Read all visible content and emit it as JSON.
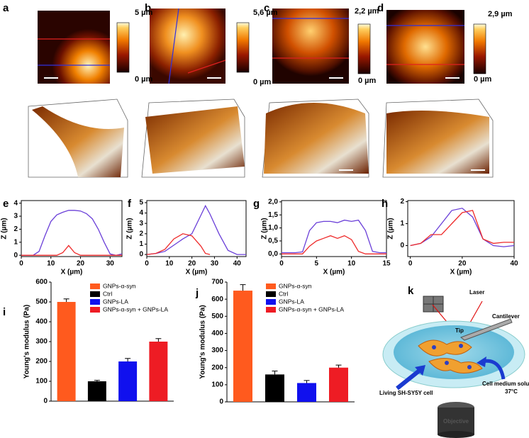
{
  "panel_labels": [
    "a",
    "b",
    "c",
    "d",
    "e",
    "f",
    "g",
    "h",
    "i",
    "j",
    "k"
  ],
  "colorbars": [
    {
      "max": "5 µm",
      "min": "0 µm"
    },
    {
      "max": "5,6 µm",
      "min": "0 µm"
    },
    {
      "max": "2,2 µm",
      "min": "0 µm"
    },
    {
      "max": "2,9 µm",
      "min": "0 µm"
    }
  ],
  "schematic": {
    "laser": "Laser",
    "cantilever": "Cantilever",
    "tip": "Tip",
    "cell": "Living SH-SY5Y cell",
    "medium": "Cell medium solution",
    "temperature": "37°C",
    "objective": "Objective"
  },
  "chart_data": [
    {
      "type": "line",
      "x_label": "X (µm)",
      "y_label": "Z (µm)",
      "xlim": [
        0,
        34
      ],
      "ylim": [
        -0.1,
        4.2
      ],
      "xticks": [
        0,
        10,
        20,
        30
      ],
      "yticks": [
        0,
        1,
        2,
        3,
        4
      ],
      "x": [
        0,
        2,
        4,
        6,
        8,
        10,
        12,
        14,
        16,
        18,
        20,
        22,
        24,
        26,
        28,
        30,
        32,
        34
      ],
      "series": [
        {
          "color": "#6a3fd8",
          "values": [
            0,
            0,
            0,
            0.3,
            1.5,
            2.6,
            3.1,
            3.3,
            3.45,
            3.45,
            3.4,
            3.2,
            2.8,
            2.0,
            1.0,
            0.1,
            0,
            0.1
          ]
        },
        {
          "color": "#ee2a2a",
          "values": [
            0,
            0,
            0,
            0,
            0,
            0,
            0,
            0.2,
            0.75,
            0.2,
            0,
            0,
            0,
            0,
            0,
            0,
            0,
            0
          ]
        }
      ]
    },
    {
      "type": "line",
      "x_label": "X (µm)",
      "y_label": "Z (µm)",
      "xlim": [
        0,
        44
      ],
      "ylim": [
        -0.2,
        5.2
      ],
      "xticks": [
        0,
        10,
        20,
        30,
        40
      ],
      "yticks": [
        0,
        1,
        2,
        3,
        4,
        5
      ],
      "x": [
        0,
        4,
        8,
        12,
        16,
        20,
        24,
        26,
        28,
        32,
        36,
        40,
        44
      ],
      "series": [
        {
          "color": "#6a3fd8",
          "values": [
            0,
            0.1,
            0.3,
            0.9,
            1.5,
            2.0,
            3.8,
            4.7,
            3.9,
            2.0,
            0.4,
            0,
            0
          ]
        },
        {
          "color": "#ee2a2a",
          "values": [
            0,
            0.1,
            0.5,
            1.5,
            2.0,
            1.8,
            0.8,
            0.1,
            0,
            null,
            null,
            null,
            null
          ]
        }
      ]
    },
    {
      "type": "line",
      "x_label": "X (µm)",
      "y_label": "Z (µm)",
      "xlim": [
        0,
        15
      ],
      "ylim": [
        -0.1,
        2.05
      ],
      "xticks": [
        0,
        5,
        10,
        15
      ],
      "yticks": [
        {
          "value": 0,
          "label": "0,0"
        },
        {
          "value": 0.5,
          "label": "0,5"
        },
        {
          "value": 1,
          "label": "1,0"
        },
        {
          "value": 1.5,
          "label": "1,5"
        },
        {
          "value": 2,
          "label": "2,0"
        }
      ],
      "x": [
        0,
        1,
        2,
        3,
        4,
        5,
        6,
        7,
        8,
        9,
        10,
        11,
        12,
        13,
        14,
        15
      ],
      "series": [
        {
          "color": "#6a3fd8",
          "values": [
            0.05,
            0.05,
            0.05,
            0.08,
            0.9,
            1.2,
            1.25,
            1.25,
            1.2,
            1.3,
            1.25,
            1.3,
            0.9,
            0.1,
            0.05,
            0.05
          ]
        },
        {
          "color": "#ee2a2a",
          "values": [
            0,
            0,
            0,
            0,
            0.3,
            0.5,
            0.6,
            0.7,
            0.6,
            0.7,
            0.55,
            0.1,
            0,
            0,
            0,
            0
          ]
        }
      ]
    },
    {
      "type": "line",
      "x_label": "X (µm)",
      "y_label": "Z (µm)",
      "xlim": [
        -1,
        40
      ],
      "ylim": [
        -0.5,
        2.05
      ],
      "xticks": [
        0,
        20,
        40
      ],
      "yticks": [
        0,
        1,
        2
      ],
      "x": [
        0,
        4,
        8,
        12,
        16,
        20,
        24,
        28,
        32,
        36,
        40
      ],
      "series": [
        {
          "color": "#6a3fd8",
          "values": [
            0,
            0.1,
            0.4,
            1.0,
            1.6,
            1.7,
            1.3,
            0.3,
            0,
            -0.05,
            0
          ]
        },
        {
          "color": "#ee2a2a",
          "values": [
            0,
            0.1,
            0.5,
            0.5,
            1.0,
            1.5,
            1.6,
            0.3,
            0.1,
            0.15,
            0.15
          ]
        }
      ]
    },
    {
      "type": "bar",
      "y_label": "Young's modulus (Pa)",
      "ylim": [
        0,
        600
      ],
      "yticks": [
        0,
        100,
        200,
        300,
        400,
        500,
        600
      ],
      "legend": "upper right",
      "categories": [
        "GNPs-α-syn",
        "Ctrl",
        "GNPs-LA",
        "GNPs-α-syn + GNPs-LA"
      ],
      "colors": [
        "#ff5a1e",
        "#000000",
        "#1010ee",
        "#ee1c24"
      ],
      "values": [
        500,
        100,
        200,
        300
      ],
      "errors": [
        15,
        5,
        15,
        15
      ]
    },
    {
      "type": "bar",
      "y_label": "Young's modulus (Pa)",
      "ylim": [
        0,
        700
      ],
      "yticks": [
        0,
        100,
        200,
        300,
        400,
        500,
        600,
        700
      ],
      "legend": "upper right",
      "categories": [
        "GNPs-α-syn",
        "Ctrl",
        "GNPs-LA",
        "GNPs-α-syn + GNPs-LA"
      ],
      "colors": [
        "#ff5a1e",
        "#000000",
        "#1010ee",
        "#ee1c24"
      ],
      "values": [
        650,
        160,
        110,
        200
      ],
      "errors": [
        35,
        20,
        15,
        15
      ]
    }
  ]
}
